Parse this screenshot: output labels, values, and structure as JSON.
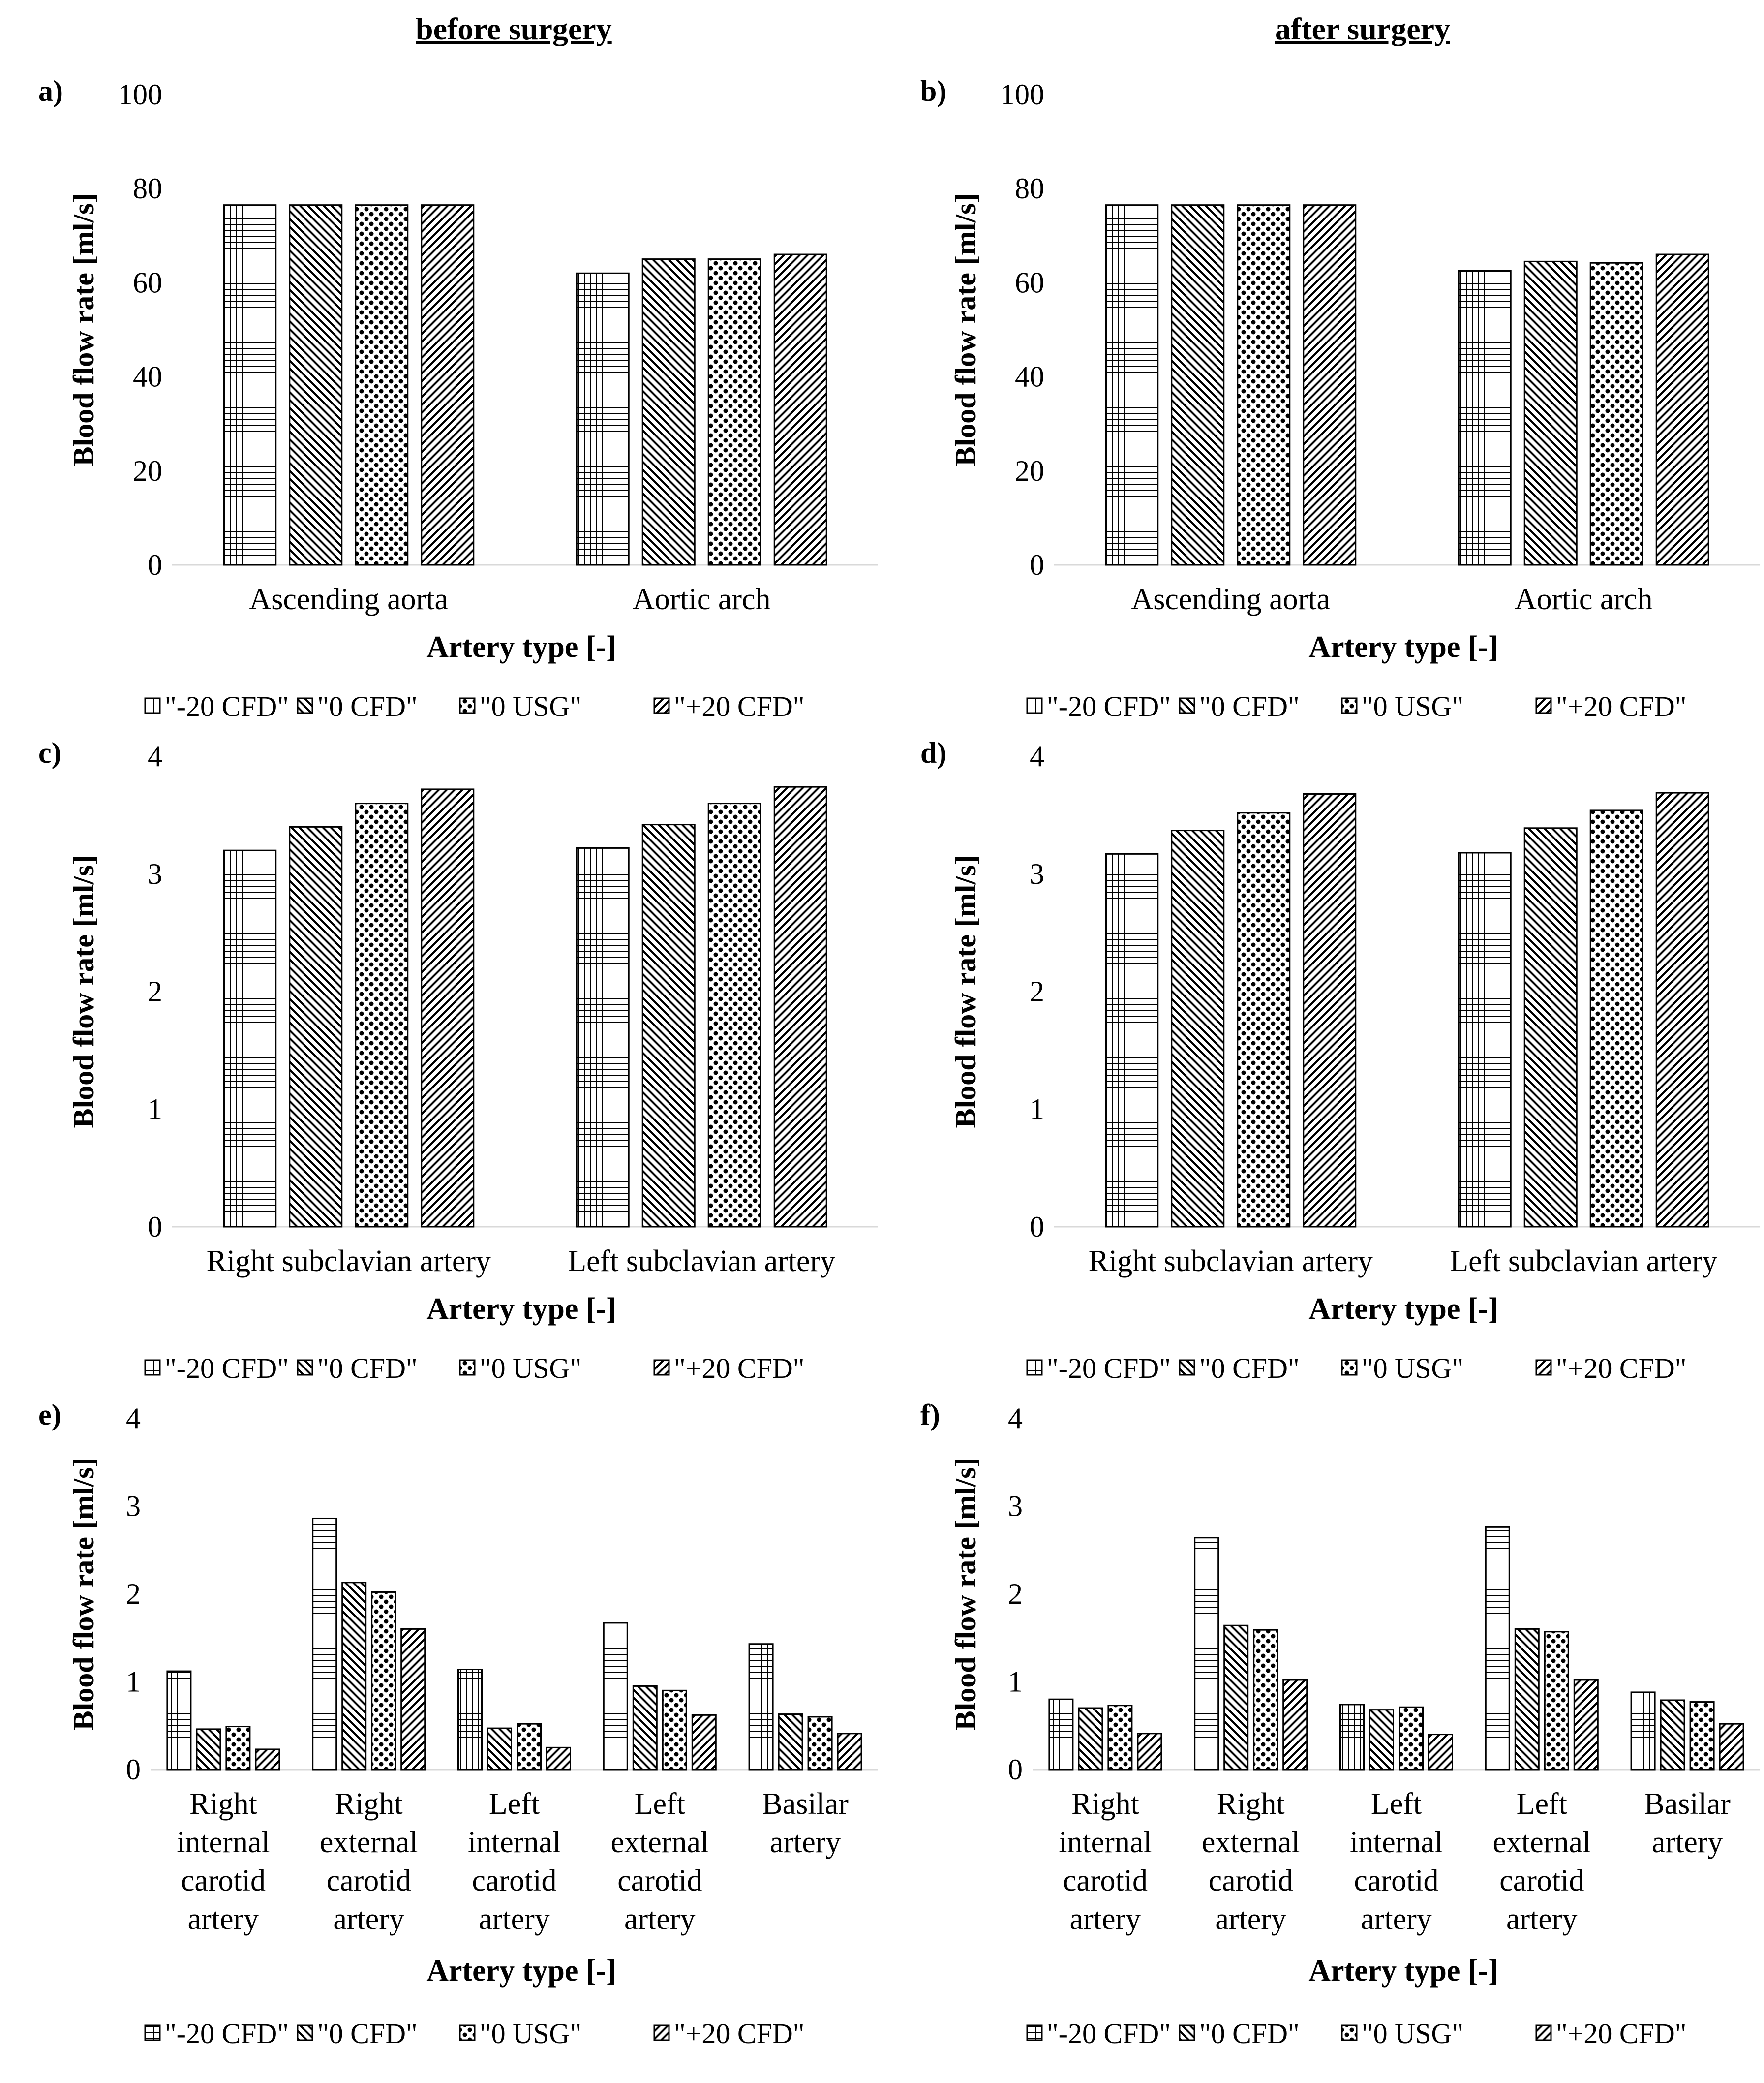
{
  "column_titles": {
    "left": "before surgery",
    "right": "after surgery"
  },
  "legend": [
    {
      "label": "\"-20 CFD\"",
      "pattern": "grid"
    },
    {
      "label": "\"0 CFD\"",
      "pattern": "back"
    },
    {
      "label": "\"0 USG\"",
      "pattern": "dots"
    },
    {
      "label": "\"+20 CFD\"",
      "pattern": "fwd"
    }
  ],
  "colors": {
    "ink": "#000000",
    "background": "#ffffff",
    "axis": "#d9d9d9"
  },
  "chart_data": [
    {
      "panel": "a)",
      "type": "bar",
      "xlabel": "Artery type [-]",
      "ylabel": "Blood flow rate [ml/s]",
      "ylim": [
        0,
        100
      ],
      "yticks": [
        0,
        20,
        40,
        60,
        80,
        100
      ],
      "categories": [
        [
          "Ascending aorta"
        ],
        [
          "Aortic arch"
        ]
      ],
      "series": [
        {
          "name": "\"-20 CFD\"",
          "values": [
            76.5,
            62
          ]
        },
        {
          "name": "\"0 CFD\"",
          "values": [
            76.5,
            65
          ]
        },
        {
          "name": "\"0 USG\"",
          "values": [
            76.5,
            65
          ]
        },
        {
          "name": "\"+20 CFD\"",
          "values": [
            76.5,
            66
          ]
        }
      ]
    },
    {
      "panel": "b)",
      "type": "bar",
      "xlabel": "Artery type [-]",
      "ylabel": "Blood flow rate [ml/s]",
      "ylim": [
        0,
        100
      ],
      "yticks": [
        0,
        20,
        40,
        60,
        80,
        100
      ],
      "categories": [
        [
          "Ascending aorta"
        ],
        [
          "Aortic arch"
        ]
      ],
      "series": [
        {
          "name": "\"-20 CFD\"",
          "values": [
            76.5,
            62.5
          ]
        },
        {
          "name": "\"0 CFD\"",
          "values": [
            76.5,
            64.5
          ]
        },
        {
          "name": "\"0 USG\"",
          "values": [
            76.5,
            64.2
          ]
        },
        {
          "name": "\"+20 CFD\"",
          "values": [
            76.5,
            66
          ]
        }
      ]
    },
    {
      "panel": "c)",
      "type": "bar",
      "xlabel": "Artery type [-]",
      "ylabel": "Blood flow rate [ml/s]",
      "ylim": [
        0,
        4
      ],
      "yticks": [
        0,
        1,
        2,
        3,
        4
      ],
      "categories": [
        [
          "Right subclavian artery"
        ],
        [
          "Left subclavian artery"
        ]
      ],
      "series": [
        {
          "name": "\"-20 CFD\"",
          "values": [
            3.2,
            3.22
          ]
        },
        {
          "name": "\"0 CFD\"",
          "values": [
            3.4,
            3.42
          ]
        },
        {
          "name": "\"0 USG\"",
          "values": [
            3.6,
            3.6
          ]
        },
        {
          "name": "\"+20 CFD\"",
          "values": [
            3.72,
            3.74
          ]
        }
      ]
    },
    {
      "panel": "d)",
      "type": "bar",
      "xlabel": "Artery type [-]",
      "ylabel": "Blood flow rate [ml/s]",
      "ylim": [
        0,
        4
      ],
      "yticks": [
        0,
        1,
        2,
        3,
        4
      ],
      "categories": [
        [
          "Right subclavian artery"
        ],
        [
          "Left subclavian artery"
        ]
      ],
      "series": [
        {
          "name": "\"-20 CFD\"",
          "values": [
            3.17,
            3.18
          ]
        },
        {
          "name": "\"0 CFD\"",
          "values": [
            3.37,
            3.39
          ]
        },
        {
          "name": "\"0 USG\"",
          "values": [
            3.52,
            3.54
          ]
        },
        {
          "name": "\"+20 CFD\"",
          "values": [
            3.68,
            3.69
          ]
        }
      ]
    },
    {
      "panel": "e)",
      "type": "bar",
      "xlabel": "Artery type [-]",
      "ylabel": "Blood flow rate [ml/s]",
      "ylim": [
        0,
        4
      ],
      "yticks": [
        0,
        1,
        2,
        3,
        4
      ],
      "categories": [
        [
          "Right",
          "internal",
          "carotid",
          "artery"
        ],
        [
          "Right",
          "external",
          "carotid",
          "artery"
        ],
        [
          "Left",
          "internal",
          "carotid",
          "artery"
        ],
        [
          "Left",
          "external",
          "carotid",
          "artery"
        ],
        [
          "Basilar",
          "artery"
        ]
      ],
      "series": [
        {
          "name": "\"-20 CFD\"",
          "values": [
            1.12,
            2.86,
            1.14,
            1.67,
            1.43
          ]
        },
        {
          "name": "\"0 CFD\"",
          "values": [
            0.46,
            2.13,
            0.47,
            0.95,
            0.63
          ]
        },
        {
          "name": "\"0 USG\"",
          "values": [
            0.49,
            2.02,
            0.52,
            0.9,
            0.6
          ]
        },
        {
          "name": "\"+20 CFD\"",
          "values": [
            0.23,
            1.6,
            0.25,
            0.62,
            0.41
          ]
        }
      ]
    },
    {
      "panel": "f)",
      "type": "bar",
      "xlabel": "Artery type [-]",
      "ylabel": "Blood flow rate [ml/s]",
      "ylim": [
        0,
        4
      ],
      "yticks": [
        0,
        1,
        2,
        3,
        4
      ],
      "categories": [
        [
          "Right",
          "internal",
          "carotid",
          "artery"
        ],
        [
          "Right",
          "external",
          "carotid",
          "artery"
        ],
        [
          "Left",
          "internal",
          "carotid",
          "artery"
        ],
        [
          "Left",
          "external",
          "carotid",
          "artery"
        ],
        [
          "Basilar",
          "artery"
        ]
      ],
      "series": [
        {
          "name": "\"-20 CFD\"",
          "values": [
            0.8,
            2.64,
            0.74,
            2.76,
            0.88
          ]
        },
        {
          "name": "\"0 CFD\"",
          "values": [
            0.7,
            1.64,
            0.68,
            1.6,
            0.79
          ]
        },
        {
          "name": "\"0 USG\"",
          "values": [
            0.73,
            1.59,
            0.71,
            1.57,
            0.77
          ]
        },
        {
          "name": "\"+20 CFD\"",
          "values": [
            0.41,
            1.02,
            0.4,
            1.02,
            0.52
          ]
        }
      ]
    }
  ]
}
